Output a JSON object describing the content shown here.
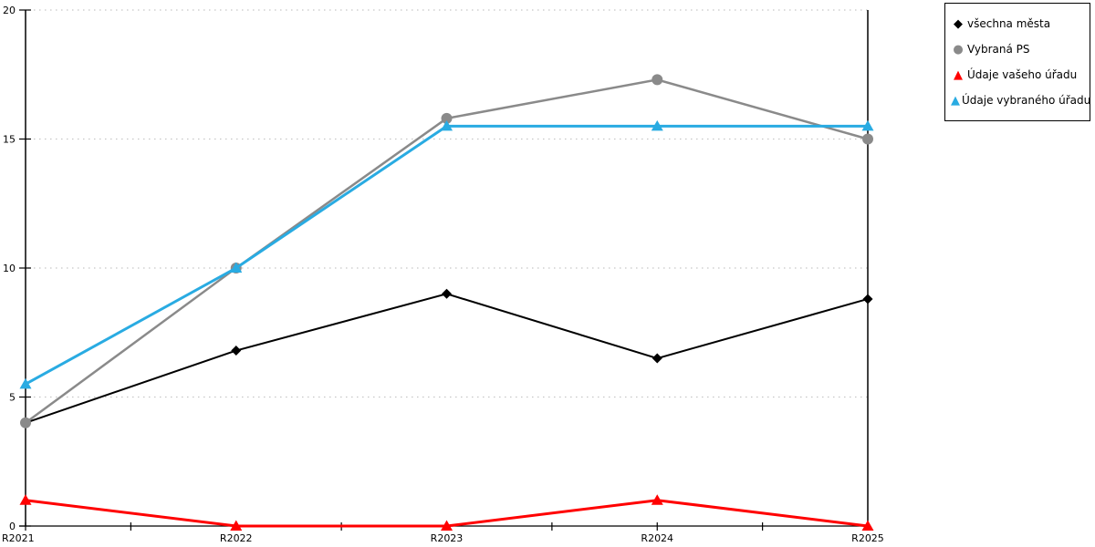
{
  "chart_data": {
    "type": "line",
    "title": "",
    "xlabel": "",
    "ylabel": "",
    "categories": [
      "R2021",
      "R2022",
      "R2023",
      "R2024",
      "R2025"
    ],
    "series": [
      {
        "name": "všechna města",
        "marker": "diamond",
        "color": "#000000",
        "line_width": 2,
        "values": [
          4.0,
          6.8,
          9.0,
          6.5,
          8.8
        ]
      },
      {
        "name": "Vybraná PS",
        "marker": "circle",
        "color": "#8a8a8a",
        "line_width": 2.5,
        "values": [
          4.0,
          10.0,
          15.8,
          17.3,
          15.0
        ]
      },
      {
        "name": "Údaje vašeho úřadu",
        "marker": "triangle",
        "color": "#ff0000",
        "line_width": 3,
        "values": [
          1.0,
          0.0,
          0.0,
          1.0,
          0.0
        ]
      },
      {
        "name": "Údaje vybraného úřadu",
        "marker": "triangle",
        "color": "#29abe2",
        "line_width": 3,
        "values": [
          5.5,
          10.0,
          15.5,
          15.5,
          15.5
        ]
      }
    ],
    "ylim": [
      0,
      20
    ],
    "y_ticks": [
      0,
      5,
      10,
      15,
      20
    ],
    "grid": "horizontal-dotted",
    "legend_position": "top-right"
  },
  "colors": {
    "background": "#ffffff",
    "axis": "#000000",
    "grid": "#c6c6c6",
    "tick_label": "#000000",
    "legend_border": "#000000"
  }
}
